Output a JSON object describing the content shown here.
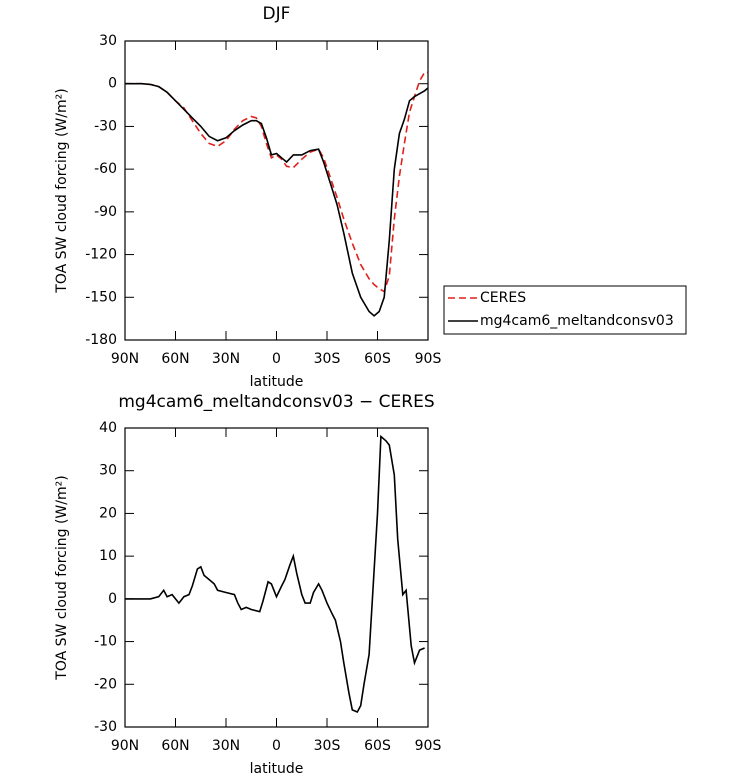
{
  "chart_data": [
    {
      "type": "line",
      "title": "DJF",
      "x_label": "latitude",
      "y_label": "TOA SW cloud forcing (W/m²)",
      "x": [
        90,
        85,
        80,
        75,
        70,
        65,
        60,
        55,
        50,
        45,
        40,
        35,
        30,
        25,
        20,
        15,
        12,
        9,
        6,
        3,
        0,
        -3,
        -6,
        -10,
        -15,
        -20,
        -25,
        -28,
        -32,
        -36,
        -40,
        -45,
        -50,
        -55,
        -58,
        -61,
        -64,
        -67,
        -70,
        -73,
        -76,
        -79,
        -82,
        -85,
        -88,
        -90
      ],
      "series": [
        {
          "name": "CERES",
          "color": "#e0201a",
          "dashed": true,
          "values": [
            0,
            0,
            0,
            -0.5,
            -2,
            -6,
            -12,
            -17,
            -26,
            -35,
            -42,
            -44,
            -40,
            -32,
            -26,
            -23,
            -24,
            -30,
            -42,
            -52,
            -50,
            -53,
            -58,
            -59,
            -53,
            -48,
            -46,
            -52,
            -66,
            -80,
            -95,
            -112,
            -127,
            -137,
            -141,
            -144,
            -146,
            -135,
            -95,
            -65,
            -42,
            -20,
            -9,
            2,
            8,
            8
          ]
        },
        {
          "name": "mg4cam6_meltandconsv03",
          "color": "#000000",
          "dashed": false,
          "values": [
            0,
            0,
            0,
            -0.5,
            -2,
            -6,
            -12,
            -18,
            -24,
            -30,
            -37,
            -40,
            -38,
            -33,
            -29,
            -26,
            -26,
            -28,
            -38,
            -50,
            -49,
            -52,
            -55,
            -50,
            -50,
            -47,
            -46,
            -55,
            -70,
            -85,
            -105,
            -133,
            -150,
            -160,
            -163,
            -160,
            -150,
            -110,
            -60,
            -35,
            -25,
            -12,
            -9,
            -7,
            -5,
            -3
          ]
        }
      ],
      "xlim": [
        90,
        -90
      ],
      "xticks": [
        {
          "value": 90,
          "label": "90N"
        },
        {
          "value": 60,
          "label": "60N"
        },
        {
          "value": 30,
          "label": "30N"
        },
        0,
        {
          "value": -30,
          "label": "30S"
        },
        {
          "value": -60,
          "label": "60S"
        },
        {
          "value": -90,
          "label": "90S"
        }
      ],
      "ylim": [
        -180,
        30
      ],
      "yticks": [
        -180,
        -150,
        -120,
        -90,
        -60,
        -30,
        0,
        30
      ],
      "legend": "right"
    },
    {
      "type": "line",
      "title": "mg4cam6_meltandconsv03 − CERES",
      "x_label": "latitude",
      "y_label": "TOA SW cloud forcing (W/m²)",
      "x": [
        90,
        80,
        75,
        70,
        67,
        65,
        62,
        60,
        58,
        55,
        52,
        50,
        47,
        45,
        43,
        40,
        37,
        35,
        30,
        25,
        23,
        21,
        18,
        15,
        10,
        8,
        5,
        3,
        0,
        -3,
        -5,
        -8,
        -10,
        -12,
        -15,
        -17,
        -20,
        -22,
        -25,
        -27,
        -30,
        -33,
        -35,
        -38,
        -40,
        -43,
        -45,
        -48,
        -50,
        -52,
        -55,
        -57,
        -60,
        -62,
        -65,
        -67,
        -70,
        -72,
        -75,
        -77,
        -80,
        -82,
        -85,
        -88
      ],
      "values": [
        0,
        0,
        0,
        0.5,
        2,
        0.5,
        1,
        0,
        -1,
        0.5,
        1,
        3,
        7,
        7.5,
        5.5,
        4.5,
        3.5,
        2,
        1.5,
        1,
        -1,
        -2.5,
        -2,
        -2.5,
        -3,
        -0.5,
        4,
        3.5,
        0.5,
        3,
        4.5,
        8,
        10,
        6,
        1,
        -1,
        -1,
        1.5,
        3.5,
        2,
        -1,
        -3.5,
        -5,
        -10,
        -15,
        -22,
        -26,
        -26.5,
        -25,
        -20,
        -13,
        0,
        20,
        38,
        37,
        36,
        29,
        14,
        1,
        2,
        -11,
        -15,
        -12,
        -11.5
      ],
      "color": "#000000",
      "xlim": [
        90,
        -90
      ],
      "xticks": [
        {
          "value": 90,
          "label": "90N"
        },
        {
          "value": 60,
          "label": "60N"
        },
        {
          "value": 30,
          "label": "30N"
        },
        0,
        {
          "value": -30,
          "label": "30S"
        },
        {
          "value": -60,
          "label": "60S"
        },
        {
          "value": -90,
          "label": "90S"
        }
      ],
      "ylim": [
        -30,
        40
      ],
      "yticks": [
        -30,
        -20,
        -10,
        0,
        10,
        20,
        30,
        40
      ]
    }
  ]
}
